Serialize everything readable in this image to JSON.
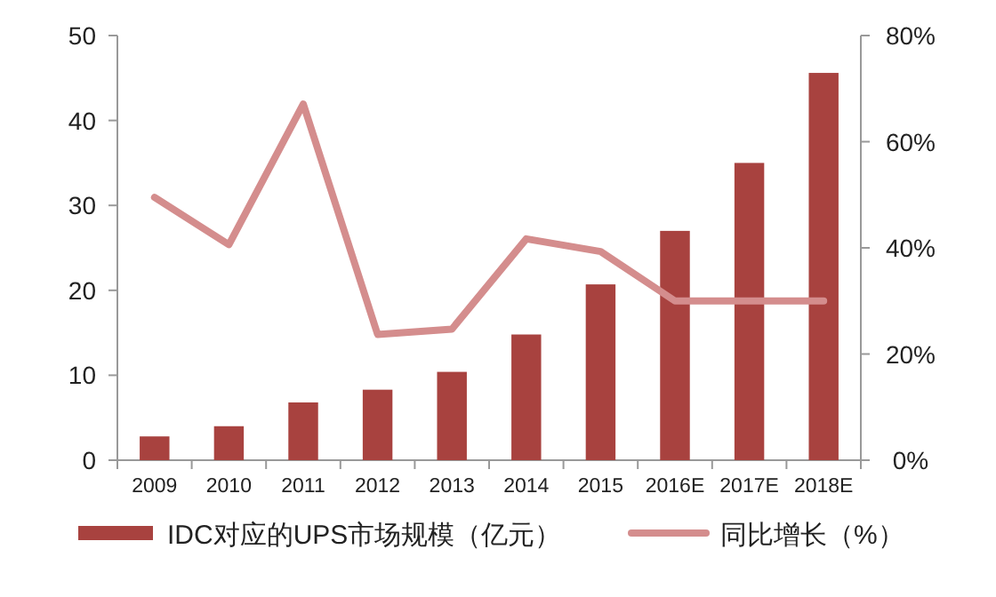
{
  "chart_data": {
    "type": "bar",
    "categories": [
      "2009",
      "2010",
      "2011",
      "2012",
      "2013",
      "2014",
      "2015",
      "2016E",
      "2017E",
      "2018E"
    ],
    "series": [
      {
        "name": "IDC对应的UPS市场规模（亿元）",
        "color": "#a8423f",
        "values": [
          2.8,
          4.0,
          6.8,
          8.3,
          10.4,
          14.8,
          20.7,
          27.0,
          35.0,
          45.6
        ]
      },
      {
        "name": "同比增长（%）",
        "type": "line",
        "axis": "y2",
        "color": "#d48d8d",
        "values": [
          49.5,
          40.6,
          67.1,
          23.7,
          24.7,
          41.7,
          39.3,
          30.0,
          30.0,
          30.0
        ]
      }
    ],
    "ylim": [
      0,
      50
    ],
    "yticks": [
      0,
      10,
      20,
      30,
      40,
      50
    ],
    "y2lim": [
      0,
      80
    ],
    "y2ticks": [
      {
        "value": 0,
        "label": "0%"
      },
      {
        "value": 20,
        "label": "20%"
      },
      {
        "value": 40,
        "label": "40%"
      },
      {
        "value": 60,
        "label": "60%"
      },
      {
        "value": 80,
        "label": "80%"
      }
    ],
    "grid": false,
    "legend": "bottom",
    "marker": "none",
    "line_style": "solid"
  }
}
